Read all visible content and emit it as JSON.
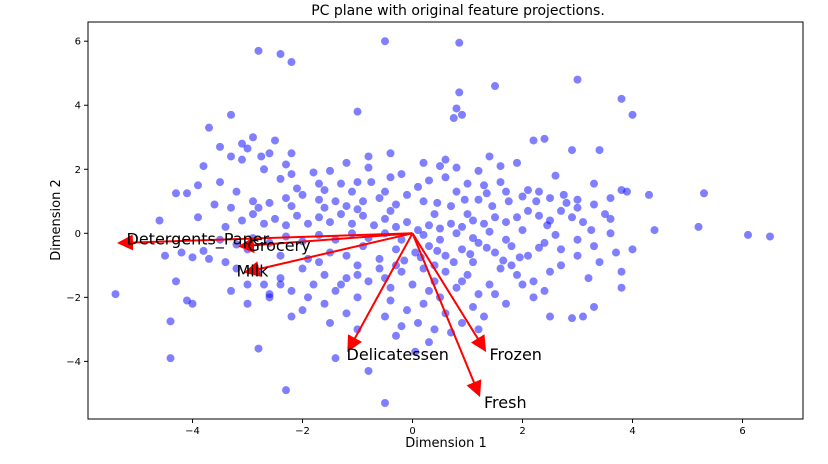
{
  "chart_data": {
    "type": "scatter",
    "title": "PC plane with original feature projections.",
    "xlabel": "Dimension 1",
    "ylabel": "Dimension 2",
    "xlim": [
      -5.9,
      7.1
    ],
    "ylim": [
      -5.8,
      6.6
    ],
    "x_ticks": [
      -4,
      -2,
      0,
      2,
      4,
      6
    ],
    "y_ticks": [
      -4,
      -2,
      0,
      2,
      4,
      6
    ],
    "point_color": "#0000ff",
    "point_alpha": 0.5,
    "arrow_color": "#ff0000",
    "arrows": [
      {
        "name": "Detergents_Paper",
        "x": -5.3,
        "y": -0.3
      },
      {
        "name": "Grocery",
        "x": -3.1,
        "y": -0.4
      },
      {
        "name": "Milk",
        "x": -3.0,
        "y": -1.2
      },
      {
        "name": "Delicatessen",
        "x": -1.15,
        "y": -3.6
      },
      {
        "name": "Frozen",
        "x": 1.3,
        "y": -3.6
      },
      {
        "name": "Fresh",
        "x": 1.2,
        "y": -5.0
      }
    ],
    "labels": [
      {
        "text": "Detergents_Paper",
        "x": -5.2,
        "y": -0.35
      },
      {
        "text": "Grocery",
        "x": -3.0,
        "y": -0.55
      },
      {
        "text": "Milk",
        "x": -3.2,
        "y": -1.35
      },
      {
        "text": "Delicatessen",
        "x": -1.2,
        "y": -3.95
      },
      {
        "text": "Frozen",
        "x": 1.4,
        "y": -3.95
      },
      {
        "text": "Fresh",
        "x": 1.3,
        "y": -5.45
      }
    ],
    "points": [
      [
        -2.8,
        5.7
      ],
      [
        -2.4,
        5.6
      ],
      [
        -2.2,
        5.35
      ],
      [
        -0.5,
        6.0
      ],
      [
        0.85,
        5.95
      ],
      [
        0.85,
        4.4
      ],
      [
        1.5,
        4.6
      ],
      [
        3.0,
        4.8
      ],
      [
        3.8,
        4.2
      ],
      [
        4.0,
        3.7
      ],
      [
        0.8,
        3.9
      ],
      [
        0.9,
        3.7
      ],
      [
        0.75,
        3.6
      ],
      [
        -1.0,
        3.8
      ],
      [
        -3.7,
        3.3
      ],
      [
        -3.3,
        3.7
      ],
      [
        -3.1,
        2.8
      ],
      [
        -3.0,
        2.65
      ],
      [
        -3.3,
        2.4
      ],
      [
        -2.5,
        2.9
      ],
      [
        -2.6,
        2.5
      ],
      [
        -2.75,
        2.4
      ],
      [
        -2.2,
        2.5
      ],
      [
        -2.3,
        2.15
      ],
      [
        -2.2,
        1.85
      ],
      [
        -1.8,
        1.9
      ],
      [
        -1.5,
        1.95
      ],
      [
        -1.7,
        1.55
      ],
      [
        -1.6,
        1.35
      ],
      [
        -1.3,
        1.55
      ],
      [
        -1.0,
        1.6
      ],
      [
        -0.8,
        2.05
      ],
      [
        -0.75,
        1.6
      ],
      [
        -0.4,
        1.75
      ],
      [
        -0.2,
        1.85
      ],
      [
        0.3,
        1.65
      ],
      [
        0.5,
        2.1
      ],
      [
        0.6,
        1.75
      ],
      [
        0.8,
        2.05
      ],
      [
        1.0,
        1.55
      ],
      [
        1.2,
        1.95
      ],
      [
        1.6,
        2.1
      ],
      [
        1.3,
        1.5
      ],
      [
        1.6,
        1.6
      ],
      [
        2.2,
        2.9
      ],
      [
        2.4,
        2.95
      ],
      [
        2.9,
        2.6
      ],
      [
        3.4,
        2.6
      ],
      [
        2.6,
        1.8
      ],
      [
        3.3,
        1.55
      ],
      [
        3.8,
        1.35
      ],
      [
        3.9,
        1.3
      ],
      [
        4.3,
        1.2
      ],
      [
        5.3,
        1.25
      ],
      [
        3.6,
        1.1
      ],
      [
        3.3,
        0.9
      ],
      [
        3.0,
        0.8
      ],
      [
        2.7,
        0.7
      ],
      [
        2.9,
        0.5
      ],
      [
        2.5,
        0.4
      ],
      [
        2.3,
        0.55
      ],
      [
        2.1,
        0.7
      ],
      [
        1.9,
        0.5
      ],
      [
        1.7,
        0.35
      ],
      [
        1.5,
        0.5
      ],
      [
        1.3,
        0.3
      ],
      [
        1.1,
        0.4
      ],
      [
        0.9,
        0.2
      ],
      [
        0.7,
        0.3
      ],
      [
        0.5,
        0.15
      ],
      [
        0.3,
        0.25
      ],
      [
        0.1,
        0.1
      ],
      [
        -0.1,
        0.35
      ],
      [
        -0.3,
        0.2
      ],
      [
        -0.5,
        0.45
      ],
      [
        -0.7,
        0.25
      ],
      [
        -0.9,
        0.55
      ],
      [
        -1.1,
        0.3
      ],
      [
        -1.3,
        0.6
      ],
      [
        -1.5,
        0.35
      ],
      [
        -1.7,
        0.5
      ],
      [
        -1.9,
        0.3
      ],
      [
        -2.1,
        0.55
      ],
      [
        -2.3,
        0.25
      ],
      [
        -2.5,
        0.45
      ],
      [
        -2.7,
        0.3
      ],
      [
        -2.9,
        0.6
      ],
      [
        -3.1,
        0.4
      ],
      [
        -3.3,
        0.8
      ],
      [
        -3.6,
        0.9
      ],
      [
        -3.9,
        0.5
      ],
      [
        -4.6,
        0.4
      ],
      [
        -4.3,
        1.25
      ],
      [
        -4.1,
        1.25
      ],
      [
        -3.9,
        1.5
      ],
      [
        -3.5,
        1.6
      ],
      [
        -3.2,
        1.3
      ],
      [
        -2.9,
        1.0
      ],
      [
        -2.6,
        0.95
      ],
      [
        -2.3,
        1.1
      ],
      [
        -2.0,
        1.2
      ],
      [
        -1.7,
        1.05
      ],
      [
        -1.4,
        1.0
      ],
      [
        -1.2,
        0.85
      ],
      [
        -0.9,
        1.0
      ],
      [
        -0.6,
        1.1
      ],
      [
        -0.3,
        0.9
      ],
      [
        -0.1,
        1.2
      ],
      [
        0.2,
        1.0
      ],
      [
        0.45,
        0.95
      ],
      [
        0.7,
        0.85
      ],
      [
        0.95,
        1.05
      ],
      [
        1.2,
        1.05
      ],
      [
        1.45,
        0.85
      ],
      [
        1.75,
        1.0
      ],
      [
        2.0,
        1.15
      ],
      [
        2.25,
        1.0
      ],
      [
        2.5,
        1.1
      ],
      [
        2.75,
        1.2
      ],
      [
        3.0,
        1.05
      ],
      [
        4.4,
        0.1
      ],
      [
        5.2,
        0.2
      ],
      [
        6.1,
        -0.05
      ],
      [
        6.5,
        -0.1
      ],
      [
        4.0,
        -0.5
      ],
      [
        3.7,
        -0.6
      ],
      [
        3.4,
        -0.9
      ],
      [
        3.0,
        -0.7
      ],
      [
        2.7,
        -1.0
      ],
      [
        3.2,
        -1.4
      ],
      [
        3.8,
        -1.2
      ],
      [
        3.8,
        -1.7
      ],
      [
        3.3,
        -2.3
      ],
      [
        3.1,
        -2.6
      ],
      [
        2.9,
        -2.65
      ],
      [
        2.5,
        -2.6
      ],
      [
        2.4,
        -1.8
      ],
      [
        2.2,
        -1.5
      ],
      [
        1.9,
        -1.3
      ],
      [
        1.6,
        -1.1
      ],
      [
        1.4,
        -1.6
      ],
      [
        1.2,
        -1.9
      ],
      [
        1.0,
        -1.3
      ],
      [
        0.8,
        -1.7
      ],
      [
        0.6,
        -1.2
      ],
      [
        0.4,
        -1.5
      ],
      [
        0.2,
        -1.1
      ],
      [
        0.0,
        -1.6
      ],
      [
        -0.2,
        -1.2
      ],
      [
        -0.4,
        -1.7
      ],
      [
        -0.6,
        -1.1
      ],
      [
        -0.8,
        -1.5
      ],
      [
        -1.0,
        -1.0
      ],
      [
        -1.2,
        -1.4
      ],
      [
        -1.4,
        -1.8
      ],
      [
        -1.6,
        -1.3
      ],
      [
        -1.8,
        -1.6
      ],
      [
        -2.0,
        -1.1
      ],
      [
        -2.2,
        -1.8
      ],
      [
        -2.4,
        -1.4
      ],
      [
        -2.6,
        -1.9
      ],
      [
        -2.8,
        -1.2
      ],
      [
        -3.0,
        -1.6
      ],
      [
        -3.2,
        -1.1
      ],
      [
        -3.4,
        -0.9
      ],
      [
        -3.7,
        -0.8
      ],
      [
        -4.0,
        -0.75
      ],
      [
        -4.3,
        -1.5
      ],
      [
        -4.1,
        -2.1
      ],
      [
        -4.0,
        -2.2
      ],
      [
        -4.4,
        -2.75
      ],
      [
        -5.4,
        -1.9
      ],
      [
        -4.4,
        -3.9
      ],
      [
        -2.8,
        -3.6
      ],
      [
        -2.3,
        -4.9
      ],
      [
        -1.4,
        -3.9
      ],
      [
        -0.8,
        -4.3
      ],
      [
        -0.5,
        -5.3
      ],
      [
        0.05,
        -3.7
      ],
      [
        0.3,
        -3.4
      ],
      [
        0.1,
        -2.8
      ],
      [
        -0.2,
        -2.9
      ],
      [
        -0.5,
        -2.6
      ],
      [
        0.6,
        -2.5
      ],
      [
        0.9,
        -2.8
      ],
      [
        1.1,
        -2.3
      ],
      [
        0.5,
        -2.0
      ],
      [
        0.2,
        -2.2
      ],
      [
        -0.1,
        -2.4
      ],
      [
        -0.4,
        -2.1
      ],
      [
        -1.0,
        -2.0
      ],
      [
        -1.2,
        -2.5
      ],
      [
        -1.6,
        -2.2
      ],
      [
        -2.0,
        -2.4
      ],
      [
        -2.2,
        -2.6
      ],
      [
        -2.6,
        -2.0
      ],
      [
        -3.0,
        -2.2
      ],
      [
        -3.3,
        -1.8
      ],
      [
        -1.9,
        -0.8
      ],
      [
        -1.5,
        -0.6
      ],
      [
        -1.2,
        -0.7
      ],
      [
        -0.9,
        -0.4
      ],
      [
        -0.6,
        -0.8
      ],
      [
        -0.3,
        -0.5
      ],
      [
        0.05,
        -0.6
      ],
      [
        0.3,
        -0.4
      ],
      [
        0.6,
        -0.7
      ],
      [
        0.9,
        -0.5
      ],
      [
        1.2,
        -0.3
      ],
      [
        1.5,
        -0.6
      ],
      [
        1.8,
        -0.4
      ],
      [
        2.1,
        -0.7
      ],
      [
        2.4,
        -0.3
      ],
      [
        2.7,
        -0.5
      ],
      [
        3.0,
        -0.2
      ],
      [
        3.3,
        -0.4
      ],
      [
        3.6,
        0.0
      ],
      [
        2.0,
        0.1
      ],
      [
        1.7,
        -0.2
      ],
      [
        1.4,
        0.05
      ],
      [
        1.1,
        -0.15
      ],
      [
        0.8,
        0.0
      ],
      [
        0.5,
        -0.2
      ],
      [
        0.2,
        -0.05
      ],
      [
        -0.2,
        -0.2
      ],
      [
        -0.5,
        0.0
      ],
      [
        -0.8,
        -0.15
      ],
      [
        -1.1,
        0.0
      ],
      [
        -1.4,
        -0.2
      ],
      [
        -1.7,
        -0.05
      ],
      [
        -2.0,
        -0.25
      ],
      [
        -2.3,
        -0.1
      ],
      [
        -2.6,
        -0.3
      ],
      [
        -2.9,
        -0.15
      ],
      [
        -3.2,
        -0.35
      ],
      [
        -3.5,
        -0.2
      ],
      [
        -3.8,
        -0.55
      ],
      [
        -4.2,
        -0.6
      ],
      [
        -4.5,
        -0.7
      ],
      [
        -1.2,
        2.2
      ],
      [
        -0.8,
        2.4
      ],
      [
        -0.4,
        2.5
      ],
      [
        0.2,
        2.2
      ],
      [
        0.6,
        2.3
      ],
      [
        1.4,
        2.4
      ],
      [
        1.9,
        2.2
      ],
      [
        -3.8,
        2.1
      ],
      [
        -3.5,
        2.7
      ],
      [
        -2.9,
        3.0
      ],
      [
        -3.1,
        2.3
      ],
      [
        -2.7,
        2.0
      ],
      [
        -2.4,
        1.7
      ],
      [
        -2.1,
        1.4
      ],
      [
        -1.1,
        1.3
      ],
      [
        -0.5,
        1.3
      ],
      [
        0.1,
        1.45
      ],
      [
        1.7,
        1.3
      ],
      [
        2.3,
        1.3
      ],
      [
        2.8,
        0.95
      ],
      [
        3.5,
        0.6
      ],
      [
        3.1,
        0.35
      ],
      [
        1.0,
        0.6
      ],
      [
        0.4,
        0.6
      ],
      [
        -0.4,
        0.7
      ],
      [
        -1.0,
        0.75
      ],
      [
        -1.6,
        0.8
      ],
      [
        -2.2,
        0.85
      ],
      [
        -2.8,
        0.8
      ],
      [
        -3.4,
        0.2
      ],
      [
        -3.0,
        -0.5
      ],
      [
        -2.4,
        -0.7
      ],
      [
        -1.7,
        -0.9
      ],
      [
        -1.0,
        -1.3
      ],
      [
        -0.3,
        -1.0
      ],
      [
        0.4,
        -1.0
      ],
      [
        1.1,
        -0.9
      ],
      [
        1.8,
        -1.0
      ],
      [
        2.5,
        -1.2
      ],
      [
        2.2,
        -2.0
      ],
      [
        1.7,
        -2.2
      ],
      [
        1.3,
        -2.6
      ],
      [
        0.7,
        -3.1
      ],
      [
        0.4,
        -3.0
      ],
      [
        -0.3,
        -3.2
      ],
      [
        1.2,
        -3.0
      ],
      [
        2.0,
        -1.6
      ],
      [
        1.5,
        -1.9
      ],
      [
        0.9,
        -1.5
      ],
      [
        0.3,
        -1.8
      ],
      [
        -0.5,
        -1.4
      ],
      [
        -1.3,
        -1.6
      ],
      [
        -1.9,
        -2.0
      ],
      [
        -2.4,
        -1.6
      ],
      [
        -2.7,
        -1.6
      ],
      [
        -1.5,
        -2.8
      ],
      [
        -1.0,
        -3.0
      ],
      [
        0.8,
        1.3
      ],
      [
        1.35,
        1.25
      ],
      [
        2.1,
        1.35
      ],
      [
        2.45,
        0.25
      ],
      [
        3.25,
        0.1
      ],
      [
        3.6,
        0.45
      ],
      [
        2.6,
        -0.05
      ],
      [
        2.3,
        -0.45
      ],
      [
        1.95,
        -0.75
      ],
      [
        1.65,
        -0.85
      ],
      [
        1.35,
        -0.45
      ],
      [
        1.05,
        -0.65
      ],
      [
        0.75,
        -0.9
      ],
      [
        0.45,
        -0.55
      ],
      [
        0.15,
        -0.75
      ],
      [
        -0.15,
        -0.85
      ]
    ]
  }
}
